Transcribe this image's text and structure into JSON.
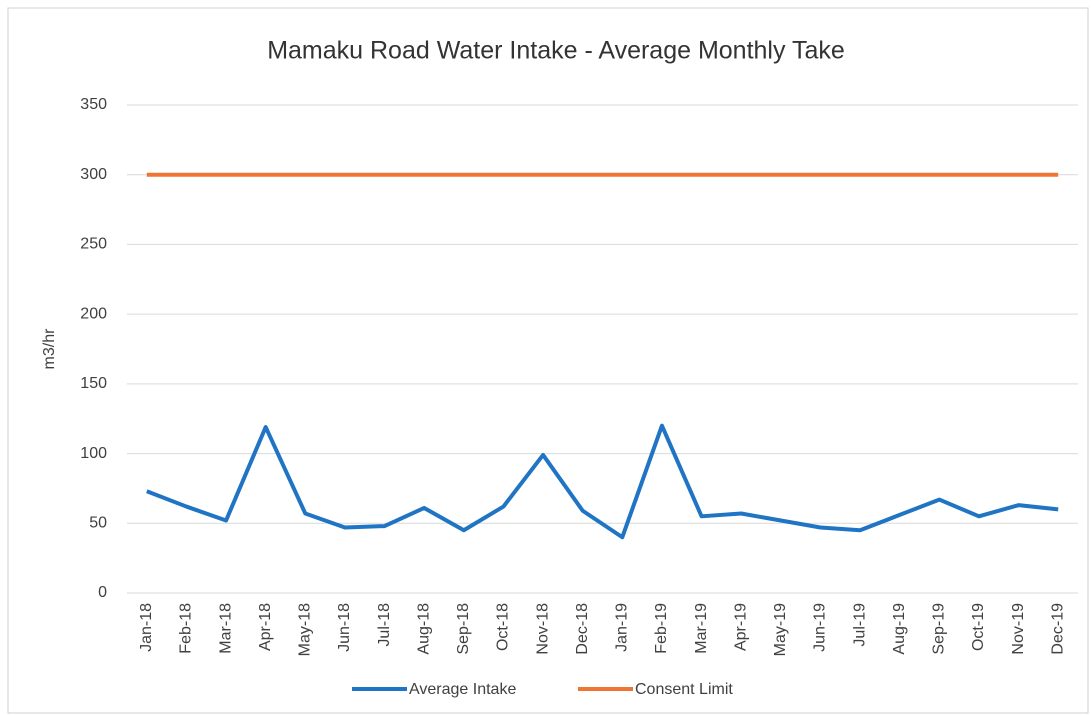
{
  "chart_data": {
    "type": "line",
    "title": "Mamaku Road Water Intake - Average Monthly Take",
    "y_label": "m3/hr",
    "categories": [
      "Jan-18",
      "Feb-18",
      "Mar-18",
      "Apr-18",
      "May-18",
      "Jun-18",
      "Jul-18",
      "Aug-18",
      "Sep-18",
      "Oct-18",
      "Nov-18",
      "Dec-18",
      "Jan-19",
      "Feb-19",
      "Mar-19",
      "Apr-19",
      "May-19",
      "Jun-19",
      "Jul-19",
      "Aug-19",
      "Sep-19",
      "Oct-19",
      "Nov-19",
      "Dec-19"
    ],
    "series": [
      {
        "name": "Average Intake",
        "color": "#1f74c4",
        "values": [
          73,
          62,
          52,
          119,
          57,
          47,
          48,
          61,
          45,
          62,
          99,
          59,
          40,
          120,
          55,
          57,
          52,
          47,
          45,
          56,
          67,
          55,
          63,
          60
        ]
      },
      {
        "name": "Consent Limit",
        "color": "#ee7533",
        "values": [
          300,
          300,
          300,
          300,
          300,
          300,
          300,
          300,
          300,
          300,
          300,
          300,
          300,
          300,
          300,
          300,
          300,
          300,
          300,
          300,
          300,
          300,
          300,
          300
        ]
      }
    ],
    "ylim": [
      0,
      350
    ],
    "yticks": [
      0,
      50,
      100,
      150,
      200,
      250,
      300,
      350
    ],
    "grid": true,
    "legend": "bottom"
  }
}
